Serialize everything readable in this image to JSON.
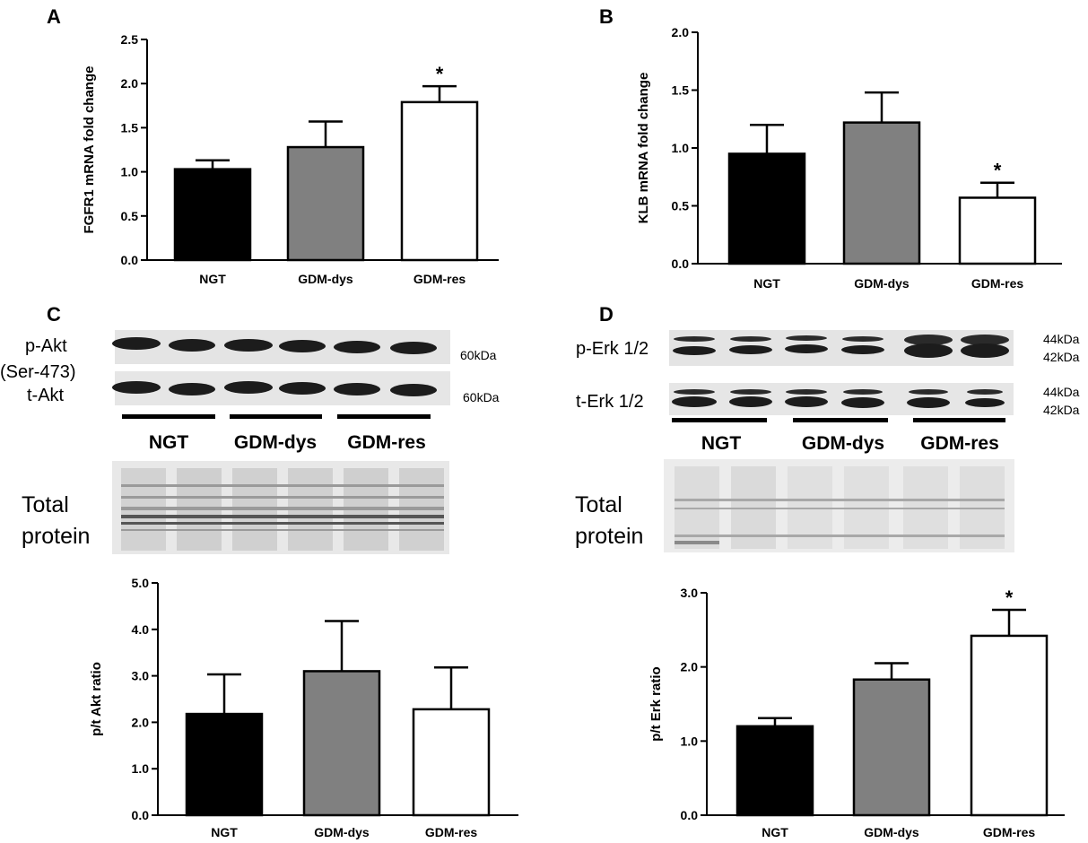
{
  "panels": {
    "A": "A",
    "B": "B",
    "C": "C",
    "D": "D"
  },
  "blots": {
    "C": {
      "rows": [
        {
          "label1": "p-Akt",
          "label2": "(Ser-473)",
          "kda": [
            "60kDa"
          ]
        },
        {
          "label1": "t-Akt",
          "label2": "",
          "kda": [
            "60kDa"
          ]
        }
      ],
      "groups": [
        "NGT",
        "GDM-dys",
        "GDM-res"
      ],
      "total_label": [
        "Total",
        "protein"
      ]
    },
    "D": {
      "rows": [
        {
          "label1": "p-Erk 1/2",
          "label2": "",
          "kda": [
            "44kDa",
            "42kDa"
          ]
        },
        {
          "label1": "t-Erk 1/2",
          "label2": "",
          "kda": [
            "44kDa",
            "42kDa"
          ]
        }
      ],
      "groups": [
        "NGT",
        "GDM-dys",
        "GDM-res"
      ],
      "total_label": [
        "Total",
        "protein"
      ]
    }
  },
  "colors": {
    "NGT": "#000000",
    "GDM-dys": "#808080",
    "GDM-res": "#ffffff"
  },
  "chart_data": [
    {
      "id": "A",
      "type": "bar",
      "categories": [
        "NGT",
        "GDM-dys",
        "GDM-res"
      ],
      "values": [
        1.03,
        1.28,
        1.79
      ],
      "errors": [
        0.1,
        0.29,
        0.18
      ],
      "significant": [
        false,
        false,
        true
      ],
      "significance_marker": "*",
      "ylabel": "FGFR1 mRNA fold change",
      "ylim": [
        0,
        2.5
      ],
      "yticks": [
        "0.0",
        "0.5",
        "1.0",
        "1.5",
        "2.0",
        "2.5"
      ],
      "grid": false
    },
    {
      "id": "B",
      "type": "bar",
      "categories": [
        "NGT",
        "GDM-dys",
        "GDM-res"
      ],
      "values": [
        0.95,
        1.22,
        0.57
      ],
      "errors": [
        0.25,
        0.26,
        0.13
      ],
      "significant": [
        false,
        false,
        true
      ],
      "significance_marker": "*",
      "ylabel": "KLB mRNA fold change",
      "ylim": [
        0,
        2.0
      ],
      "yticks": [
        "0.0",
        "0.5",
        "1.0",
        "1.5",
        "2.0"
      ],
      "grid": false
    },
    {
      "id": "C",
      "type": "bar",
      "categories": [
        "NGT",
        "GDM-dys",
        "GDM-res"
      ],
      "values": [
        2.18,
        3.1,
        2.28
      ],
      "errors": [
        0.85,
        1.08,
        0.9
      ],
      "significant": [
        false,
        false,
        false
      ],
      "significance_marker": "*",
      "ylabel": "p/t Akt ratio",
      "ylim": [
        0,
        5.0
      ],
      "yticks": [
        "0.0",
        "1.0",
        "2.0",
        "3.0",
        "4.0",
        "5.0"
      ],
      "grid": false
    },
    {
      "id": "D",
      "type": "bar",
      "categories": [
        "NGT",
        "GDM-dys",
        "GDM-res"
      ],
      "values": [
        1.2,
        1.83,
        2.42
      ],
      "errors": [
        0.11,
        0.22,
        0.35
      ],
      "significant": [
        false,
        false,
        true
      ],
      "significance_marker": "*",
      "ylabel": "p/t Erk ratio",
      "ylim": [
        0,
        3.0
      ],
      "yticks": [
        "0.0",
        "1.0",
        "2.0",
        "3.0"
      ],
      "grid": false
    }
  ]
}
